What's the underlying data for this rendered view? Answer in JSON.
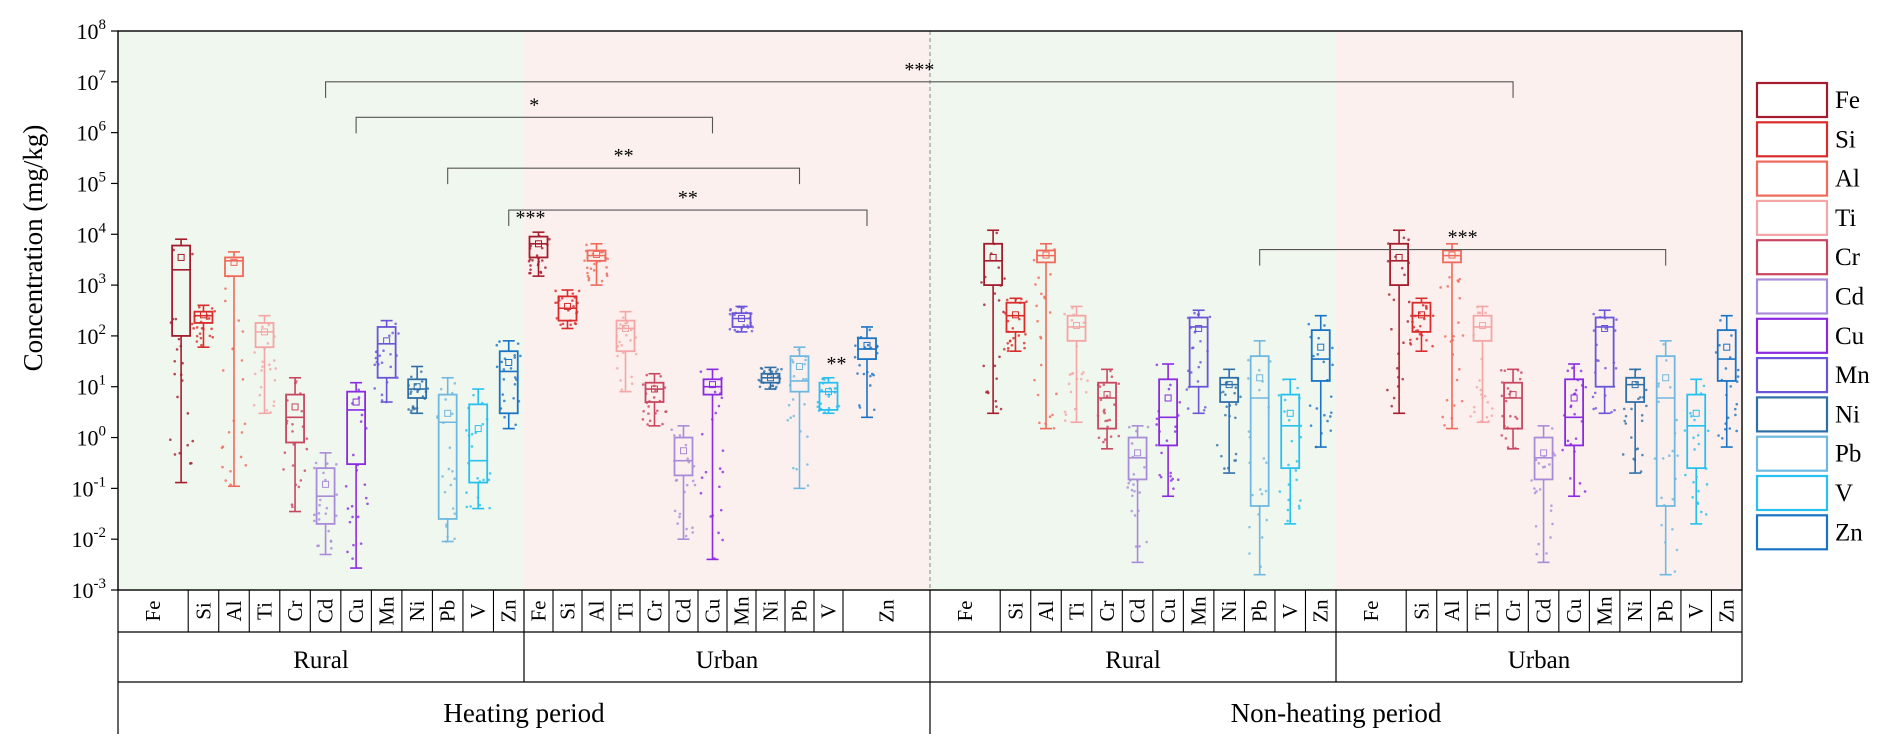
{
  "chart_data": {
    "type": "box",
    "ylabel": "Concentration (mg/kg)",
    "yscale": "log",
    "ylim": [
      0.001,
      100000000
    ],
    "yticks": [
      {
        "value": 0.001,
        "base": "10",
        "exp": "-3"
      },
      {
        "value": 0.01,
        "base": "10",
        "exp": "-2"
      },
      {
        "value": 0.1,
        "base": "10",
        "exp": "-1"
      },
      {
        "value": 1,
        "base": "10",
        "exp": "0"
      },
      {
        "value": 10,
        "base": "10",
        "exp": "1"
      },
      {
        "value": 100,
        "base": "10",
        "exp": "2"
      },
      {
        "value": 1000,
        "base": "10",
        "exp": "3"
      },
      {
        "value": 10000,
        "base": "10",
        "exp": "4"
      },
      {
        "value": 100000,
        "base": "10",
        "exp": "5"
      },
      {
        "value": 1000000,
        "base": "10",
        "exp": "6"
      },
      {
        "value": 10000000,
        "base": "10",
        "exp": "7"
      },
      {
        "value": 100000000,
        "base": "10",
        "exp": "8"
      }
    ],
    "legend_position": "right",
    "series": [
      {
        "name": "Fe",
        "color": "#a51d2d"
      },
      {
        "name": "Si",
        "color": "#d92c2c"
      },
      {
        "name": "Al",
        "color": "#ef6a5a"
      },
      {
        "name": "Ti",
        "color": "#f4a5a5"
      },
      {
        "name": "Cr",
        "color": "#c94660"
      },
      {
        "name": "Cd",
        "color": "#a98cd9"
      },
      {
        "name": "Cu",
        "color": "#8a2be2"
      },
      {
        "name": "Mn",
        "color": "#6a55d8"
      },
      {
        "name": "Ni",
        "color": "#2f6fa8"
      },
      {
        "name": "Pb",
        "color": "#6fb8e0"
      },
      {
        "name": "V",
        "color": "#26c1f0"
      },
      {
        "name": "Zn",
        "color": "#1a73c4"
      }
    ],
    "background_colors": {
      "rural": "#f0f7ee",
      "urban": "#fbf0ee"
    },
    "periods": [
      {
        "name": "Heating period",
        "groups": [
          {
            "name": "Rural",
            "boxes": [
              {
                "element": "Fe",
                "min": 0.13,
                "q1": 100,
                "median": 2000,
                "q3": 6000,
                "max": 8000,
                "mean": 3500
              },
              {
                "element": "Si",
                "min": 60,
                "q1": 180,
                "median": 250,
                "q3": 300,
                "max": 400,
                "mean": 260
              },
              {
                "element": "Al",
                "min": 0.11,
                "q1": 1500,
                "median": 3000,
                "q3": 3500,
                "max": 4500,
                "mean": 2800
              },
              {
                "element": "Ti",
                "min": 3,
                "q1": 60,
                "median": 120,
                "q3": 180,
                "max": 250,
                "mean": 120
              },
              {
                "element": "Cr",
                "min": 0.035,
                "q1": 0.8,
                "median": 2.5,
                "q3": 7,
                "max": 15,
                "mean": 4
              },
              {
                "element": "Cd",
                "min": 0.005,
                "q1": 0.02,
                "median": 0.07,
                "q3": 0.25,
                "max": 0.5,
                "mean": 0.12
              },
              {
                "element": "Cu",
                "min": 0.0027,
                "q1": 0.3,
                "median": 3.5,
                "q3": 8,
                "max": 12,
                "mean": 5
              },
              {
                "element": "Mn",
                "min": 5,
                "q1": 15,
                "median": 70,
                "q3": 150,
                "max": 200,
                "mean": 80
              },
              {
                "element": "Ni",
                "min": 3,
                "q1": 6,
                "median": 9,
                "q3": 14,
                "max": 25,
                "mean": 10
              },
              {
                "element": "Pb",
                "min": 0.009,
                "q1": 0.025,
                "median": 2,
                "q3": 7,
                "max": 15,
                "mean": 3
              },
              {
                "element": "V",
                "min": 0.04,
                "q1": 0.13,
                "median": 0.35,
                "q3": 4.5,
                "max": 9,
                "mean": 1.5
              },
              {
                "element": "Zn",
                "min": 1.5,
                "q1": 3,
                "median": 20,
                "q3": 50,
                "max": 80,
                "mean": 30
              }
            ]
          },
          {
            "name": "Urban",
            "boxes": [
              {
                "element": "Fe",
                "min": 1500,
                "q1": 3500,
                "median": 6500,
                "q3": 9000,
                "max": 11000,
                "mean": 6500
              },
              {
                "element": "Si",
                "min": 140,
                "q1": 200,
                "median": 350,
                "q3": 600,
                "max": 800,
                "mean": 380
              },
              {
                "element": "Al",
                "min": 1000,
                "q1": 3000,
                "median": 3800,
                "q3": 4800,
                "max": 6500,
                "mean": 4000
              },
              {
                "element": "Ti",
                "min": 8,
                "q1": 50,
                "median": 140,
                "q3": 200,
                "max": 300,
                "mean": 140
              },
              {
                "element": "Cr",
                "min": 1.7,
                "q1": 5,
                "median": 9,
                "q3": 12,
                "max": 18,
                "mean": 9
              },
              {
                "element": "Cd",
                "min": 0.01,
                "q1": 0.18,
                "median": 0.35,
                "q3": 1,
                "max": 1.7,
                "mean": 0.55
              },
              {
                "element": "Cu",
                "min": 0.004,
                "q1": 7,
                "median": 10,
                "q3": 14,
                "max": 22,
                "mean": 11
              },
              {
                "element": "Mn",
                "min": 120,
                "q1": 150,
                "median": 220,
                "q3": 280,
                "max": 380,
                "mean": 220
              },
              {
                "element": "Ni",
                "min": 9,
                "q1": 12,
                "median": 15,
                "q3": 18,
                "max": 24,
                "mean": 15
              },
              {
                "element": "Pb",
                "min": 0.1,
                "q1": 8,
                "median": 13,
                "q3": 40,
                "max": 60,
                "mean": 25
              },
              {
                "element": "V",
                "min": 3,
                "q1": 3.5,
                "median": 8,
                "q3": 12,
                "max": 15,
                "mean": 8
              },
              {
                "element": "Zn",
                "min": 2.5,
                "q1": 35,
                "median": 55,
                "q3": 90,
                "max": 150,
                "mean": 65
              }
            ]
          }
        ]
      },
      {
        "name": "Non-heating period",
        "groups": [
          {
            "name": "Rural",
            "boxes": [
              {
                "element": "Fe",
                "min": 3,
                "q1": 1000,
                "median": 3000,
                "q3": 6500,
                "max": 12000,
                "mean": 3500
              },
              {
                "element": "Si",
                "min": 50,
                "q1": 120,
                "median": 250,
                "q3": 450,
                "max": 550,
                "mean": 260
              },
              {
                "element": "Al",
                "min": 1.5,
                "q1": 2800,
                "median": 3800,
                "q3": 4800,
                "max": 6500,
                "mean": 3900
              },
              {
                "element": "Ti",
                "min": 2,
                "q1": 80,
                "median": 150,
                "q3": 250,
                "max": 380,
                "mean": 160
              },
              {
                "element": "Cr",
                "min": 0.6,
                "q1": 1.5,
                "median": 6,
                "q3": 12,
                "max": 22,
                "mean": 7
              },
              {
                "element": "Cd",
                "min": 0.0035,
                "q1": 0.15,
                "median": 0.4,
                "q3": 1,
                "max": 1.7,
                "mean": 0.5
              },
              {
                "element": "Cu",
                "min": 0.07,
                "q1": 0.7,
                "median": 2.5,
                "q3": 14,
                "max": 28,
                "mean": 6
              },
              {
                "element": "Mn",
                "min": 3,
                "q1": 10,
                "median": 150,
                "q3": 230,
                "max": 320,
                "mean": 140
              },
              {
                "element": "Ni",
                "min": 0.2,
                "q1": 5,
                "median": 11,
                "q3": 15,
                "max": 22,
                "mean": 11
              },
              {
                "element": "Pb",
                "min": 0.002,
                "q1": 0.045,
                "median": 6,
                "q3": 40,
                "max": 80,
                "mean": 15
              },
              {
                "element": "V",
                "min": 0.02,
                "q1": 0.25,
                "median": 1.7,
                "q3": 7,
                "max": 14,
                "mean": 3
              },
              {
                "element": "Zn",
                "min": 0.65,
                "q1": 13,
                "median": 35,
                "q3": 130,
                "max": 250,
                "mean": 60
              }
            ]
          },
          {
            "name": "Urban",
            "boxes": [
              {
                "element": "Fe",
                "min": 3,
                "q1": 1000,
                "median": 3000,
                "q3": 6500,
                "max": 12000,
                "mean": 3500
              },
              {
                "element": "Si",
                "min": 50,
                "q1": 120,
                "median": 250,
                "q3": 450,
                "max": 550,
                "mean": 260
              },
              {
                "element": "Al",
                "min": 1.5,
                "q1": 2800,
                "median": 3800,
                "q3": 4800,
                "max": 6500,
                "mean": 3900
              },
              {
                "element": "Ti",
                "min": 2,
                "q1": 80,
                "median": 150,
                "q3": 250,
                "max": 380,
                "mean": 160
              },
              {
                "element": "Cr",
                "min": 0.6,
                "q1": 1.5,
                "median": 6,
                "q3": 12,
                "max": 22,
                "mean": 7
              },
              {
                "element": "Cd",
                "min": 0.0035,
                "q1": 0.15,
                "median": 0.4,
                "q3": 1,
                "max": 1.7,
                "mean": 0.5
              },
              {
                "element": "Cu",
                "min": 0.07,
                "q1": 0.7,
                "median": 2.5,
                "q3": 14,
                "max": 28,
                "mean": 6
              },
              {
                "element": "Mn",
                "min": 3,
                "q1": 10,
                "median": 150,
                "q3": 230,
                "max": 320,
                "mean": 140
              },
              {
                "element": "Ni",
                "min": 0.2,
                "q1": 5,
                "median": 11,
                "q3": 15,
                "max": 22,
                "mean": 11
              },
              {
                "element": "Pb",
                "min": 0.002,
                "q1": 0.045,
                "median": 6,
                "q3": 40,
                "max": 80,
                "mean": 15
              },
              {
                "element": "V",
                "min": 0.02,
                "q1": 0.25,
                "median": 1.7,
                "q3": 7,
                "max": 14,
                "mean": 3
              },
              {
                "element": "Zn",
                "min": 0.65,
                "q1": 13,
                "median": 35,
                "q3": 130,
                "max": 250,
                "mean": 60
              }
            ]
          }
        ]
      }
    ],
    "significance": [
      {
        "label": "***",
        "from": {
          "period": 0,
          "group": 0,
          "element": "Cd"
        },
        "to": {
          "period": 1,
          "group": 1,
          "element": "Cr"
        },
        "level": 10000000
      },
      {
        "label": "*",
        "from": {
          "period": 0,
          "group": 0,
          "element": "Cu"
        },
        "to": {
          "period": 0,
          "group": 1,
          "element": "Cu"
        },
        "level": 2000000
      },
      {
        "label": "**",
        "from": {
          "period": 0,
          "group": 0,
          "element": "Pb"
        },
        "to": {
          "period": 0,
          "group": 1,
          "element": "Pb"
        },
        "level": 200000
      },
      {
        "label": "**",
        "from": {
          "period": 0,
          "group": 0,
          "element": "Zn"
        },
        "to": {
          "period": 0,
          "group": 1,
          "element": "Zn"
        },
        "level": 30000
      },
      {
        "label": "***",
        "from": {
          "period": 1,
          "group": 0,
          "element": "Pb"
        },
        "to": {
          "period": 1,
          "group": 1,
          "element": "Pb"
        },
        "level": 5000
      }
    ],
    "box_annotations": [
      {
        "label": "***",
        "period": 0,
        "group": 1,
        "element": "Fe"
      },
      {
        "label": "**",
        "period": 0,
        "group": 1,
        "element": "V"
      }
    ]
  }
}
